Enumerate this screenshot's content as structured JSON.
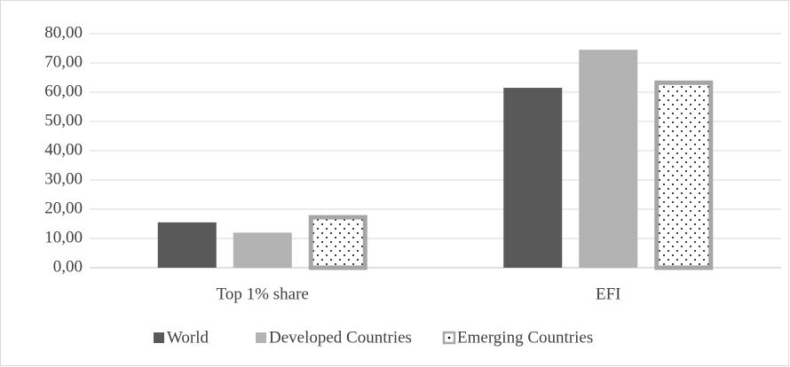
{
  "chart_data": {
    "type": "bar",
    "categories": [
      "Top 1% share",
      "EFI"
    ],
    "series": [
      {
        "name": "World",
        "color": "#595959",
        "values": [
          15.5,
          61.5
        ]
      },
      {
        "name": "Developed Countries",
        "color": "#b3b3b3",
        "values": [
          12.0,
          74.5
        ]
      },
      {
        "name": "Emerging Countries",
        "color": "#a6a6a6",
        "pattern": "dots",
        "values": [
          18.0,
          64.0
        ]
      }
    ],
    "ylim": [
      0,
      80
    ],
    "yticks": [
      {
        "value": 0,
        "label": "0,00"
      },
      {
        "value": 10,
        "label": "10,00"
      },
      {
        "value": 20,
        "label": "20,00"
      },
      {
        "value": 30,
        "label": "30,00"
      },
      {
        "value": 40,
        "label": "40,00"
      },
      {
        "value": 50,
        "label": "50,00"
      },
      {
        "value": 60,
        "label": "60,00"
      },
      {
        "value": 70,
        "label": "70,00"
      },
      {
        "value": 80,
        "label": "80,00"
      }
    ],
    "grid": true,
    "legend": "bottom"
  }
}
